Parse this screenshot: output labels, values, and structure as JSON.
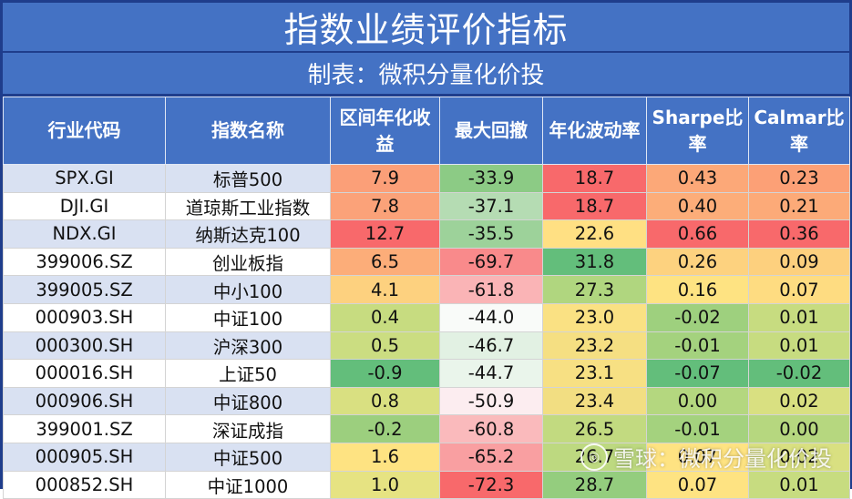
{
  "title": "指数业绩评价指标",
  "subtitle": "制表：微积分量化价投",
  "headers": [
    "行业代码",
    "指数名称",
    "区间年化收益",
    "最大回撤",
    "年化波动率",
    "Sharpe比率",
    "Calmar比率"
  ],
  "rows": [
    {
      "code": "SPX.GI",
      "name": "标普500",
      "ret": "7.9",
      "dd": "-33.9",
      "vol": "18.7",
      "sharpe": "0.43",
      "calmar": "0.23",
      "colors": [
        "#fb9f78",
        "#8ccb85",
        "#f8696b",
        "#fca878",
        "#fca076"
      ]
    },
    {
      "code": "DJI.GI",
      "name": "道琼斯工业指数",
      "ret": "7.8",
      "dd": "-37.1",
      "vol": "18.7",
      "sharpe": "0.40",
      "calmar": "0.21",
      "colors": [
        "#fba279",
        "#b5dcb3",
        "#f8696b",
        "#fcad79",
        "#fcaa78"
      ]
    },
    {
      "code": "NDX.GI",
      "name": "纳斯达克100",
      "ret": "12.7",
      "dd": "-35.5",
      "vol": "22.6",
      "sharpe": "0.66",
      "calmar": "0.36",
      "colors": [
        "#f8696b",
        "#9dd29a",
        "#ffe083",
        "#f8696b",
        "#f8696b"
      ]
    },
    {
      "code": "399006.SZ",
      "name": "创业板指",
      "ret": "6.5",
      "dd": "-69.7",
      "vol": "31.8",
      "sharpe": "0.26",
      "calmar": "0.09",
      "colors": [
        "#fcad79",
        "#f98a8b",
        "#63be7b",
        "#fdd27f",
        "#fdd07e"
      ]
    },
    {
      "code": "399005.SZ",
      "name": "中小100",
      "ret": "4.1",
      "dd": "-61.8",
      "vol": "27.3",
      "sharpe": "0.16",
      "calmar": "0.07",
      "colors": [
        "#fdd17f",
        "#fab4b6",
        "#b0d67f",
        "#fee382",
        "#fedc81"
      ]
    },
    {
      "code": "000903.SH",
      "name": "中证100",
      "ret": "0.4",
      "dd": "-44.0",
      "vol": "23.0",
      "sharpe": "-0.02",
      "calmar": "0.01",
      "colors": [
        "#c7dc80",
        "#f9fbf9",
        "#fae183",
        "#9ed07e",
        "#c7dc80"
      ]
    },
    {
      "code": "000300.SH",
      "name": "沪深300",
      "ret": "0.5",
      "dd": "-46.7",
      "vol": "23.2",
      "sharpe": "-0.01",
      "calmar": "0.01",
      "colors": [
        "#cbdd81",
        "#e2f1e3",
        "#f5df82",
        "#a4d27e",
        "#c7dc80"
      ]
    },
    {
      "code": "000016.SH",
      "name": "上证50",
      "ret": "-0.9",
      "dd": "-44.7",
      "vol": "23.1",
      "sharpe": "-0.07",
      "calmar": "-0.02",
      "colors": [
        "#63be7b",
        "#eaf5eb",
        "#f7e083",
        "#63be7b",
        "#63be7b"
      ]
    },
    {
      "code": "000906.SH",
      "name": "中证800",
      "ret": "0.8",
      "dd": "-50.9",
      "vol": "23.4",
      "sharpe": "0.00",
      "calmar": "0.02",
      "colors": [
        "#d9e081",
        "#fcedf0",
        "#f2de82",
        "#b4d77f",
        "#d9e081"
      ]
    },
    {
      "code": "399001.SZ",
      "name": "深证成指",
      "ret": "-0.2",
      "dd": "-60.8",
      "vol": "26.5",
      "sharpe": "-0.01",
      "calmar": "0.00",
      "colors": [
        "#9ccf7e",
        "#fababc",
        "#c2da80",
        "#a4d27e",
        "#b6d77f"
      ]
    },
    {
      "code": "000905.SH",
      "name": "中证500",
      "ret": "1.6",
      "dd": "-65.2",
      "vol": "26.7",
      "sharpe": "0.07",
      "calmar": "0.02",
      "colors": [
        "#fee382",
        "#f99fa1",
        "#bdd980",
        "#fee382",
        "#d9e081"
      ]
    },
    {
      "code": "000852.SH",
      "name": "中证1000",
      "ret": "1.0",
      "dd": "-72.3",
      "vol": "28.7",
      "sharpe": "0.07",
      "calmar": "0.01",
      "colors": [
        "#e6e382",
        "#f8696b",
        "#94cd7e",
        "#fee382",
        "#c7dc80"
      ]
    }
  ],
  "watermark": "雪球：微积分量化价投"
}
